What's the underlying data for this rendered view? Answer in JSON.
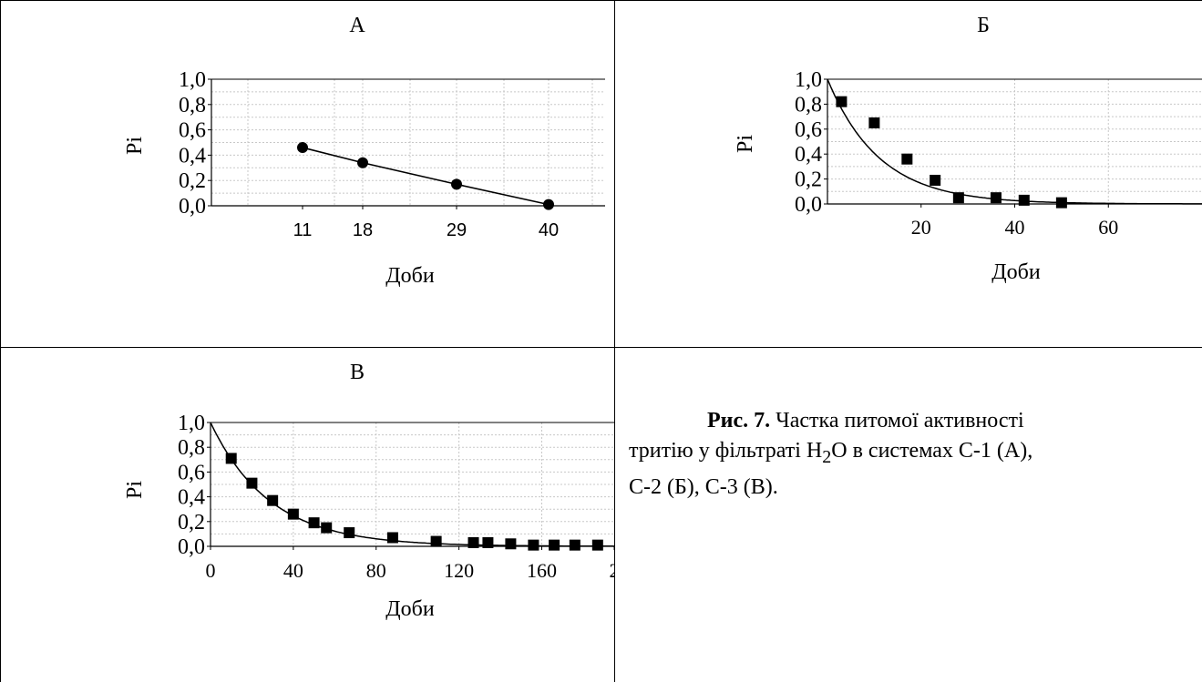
{
  "panels": [
    {
      "id": "A",
      "title": "А",
      "chart_data": {
        "type": "line",
        "ylabel": "Pi",
        "xlabel": "Доби",
        "x_ticks": [
          "11",
          "18",
          "29",
          "40"
        ],
        "y_ticks": [
          "1,0",
          "0,8",
          "0,6",
          "0,4",
          "0,2",
          "0,0"
        ],
        "ylim": [
          0,
          1
        ],
        "x_scale": "categorical",
        "series": [
          {
            "marker": "circle",
            "x": [
              11,
              18,
              29,
              40
            ],
            "y": [
              0.46,
              0.34,
              0.17,
              0.01
            ]
          }
        ],
        "grid": true
      }
    },
    {
      "id": "B",
      "title": "Б",
      "chart_data": {
        "type": "scatter",
        "ylabel": "Pi",
        "xlabel": "Доби",
        "x_ticks": [
          "20",
          "40",
          "60"
        ],
        "y_ticks": [
          "1,0",
          "0,8",
          "0,6",
          "0,4",
          "0,2",
          "0,0"
        ],
        "xlim": [
          0,
          80
        ],
        "ylim": [
          0,
          1
        ],
        "series": [
          {
            "marker": "square",
            "x": [
              3,
              10,
              17,
              23,
              28,
              36,
              42,
              50
            ],
            "y": [
              0.82,
              0.65,
              0.36,
              0.19,
              0.05,
              0.05,
              0.03,
              0.01
            ]
          }
        ],
        "fit_curve": {
          "form": "exponential decay",
          "y0": 1.0,
          "k": 0.09
        },
        "grid": true
      }
    },
    {
      "id": "C",
      "title": "В",
      "chart_data": {
        "type": "scatter",
        "ylabel": "Pi",
        "xlabel": "Доби",
        "x_ticks": [
          "0",
          "40",
          "80",
          "120",
          "160",
          "2"
        ],
        "y_ticks": [
          "1,0",
          "0,8",
          "0,6",
          "0,4",
          "0,2",
          "0,0"
        ],
        "xlim": [
          0,
          195
        ],
        "ylim": [
          0,
          1
        ],
        "series": [
          {
            "marker": "square",
            "x": [
              10,
              20,
              30,
              40,
              50,
              56,
              67,
              88,
              109,
              127,
              134,
              145,
              156,
              166,
              176,
              187
            ],
            "y": [
              0.71,
              0.51,
              0.37,
              0.26,
              0.19,
              0.15,
              0.11,
              0.07,
              0.04,
              0.03,
              0.03,
              0.02,
              0.01,
              0.01,
              0.01,
              0.01
            ]
          }
        ],
        "fit_curve": {
          "form": "exponential decay",
          "y0": 1.0,
          "k": 0.035
        },
        "grid": true
      }
    }
  ],
  "caption": {
    "label": "Рис. 7.",
    "line1": "Частка питомої активності",
    "line2a": "тритію у фільтраті H",
    "sub": "2",
    "line2b": "O в системах С-1 (А),",
    "line3": "С-2 (Б), С-3 (В)."
  }
}
